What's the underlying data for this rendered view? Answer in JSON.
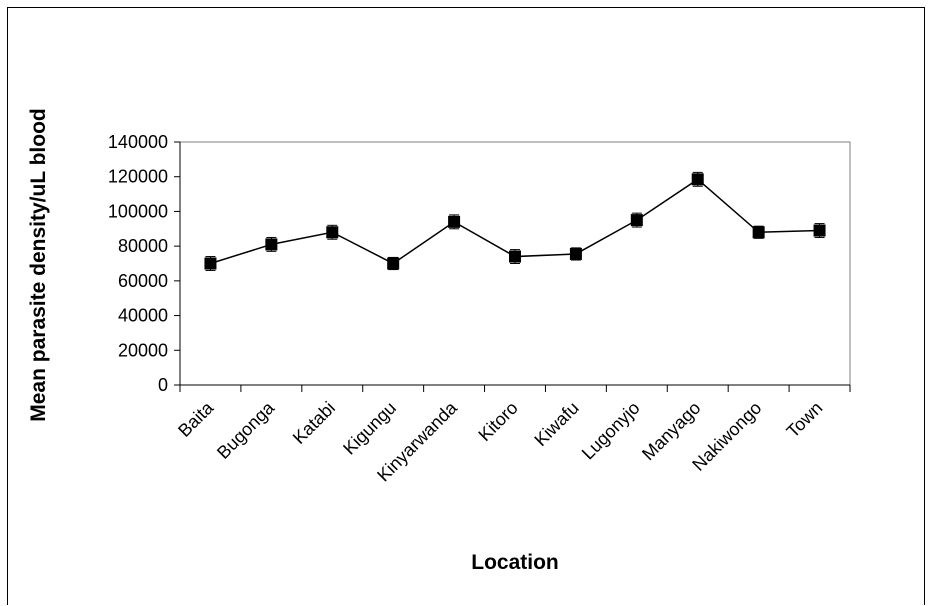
{
  "chart_data": {
    "type": "line",
    "title": "",
    "xlabel": "Location",
    "ylabel": "Mean parasite density/uL blood",
    "categories": [
      "Baita",
      "Bugonga",
      "Katabi",
      "Kigungu",
      "Kinyarwanda",
      "Kitoro",
      "Kiwafu",
      "Lugonyjo",
      "Manyago",
      "Nakiwongo",
      "Town"
    ],
    "series": [
      {
        "values": [
          70000,
          81000,
          88000,
          70000,
          94000,
          74000,
          75500,
          95000,
          118500,
          88000,
          89000
        ],
        "error": [
          4000,
          4000,
          4000,
          3500,
          4000,
          4000,
          3500,
          4000,
          4000,
          3500,
          4000
        ],
        "color": "#000000",
        "marker": "square"
      }
    ],
    "ylim": [
      0,
      140000
    ],
    "yticks": [
      "0",
      "20000",
      "40000",
      "60000",
      "80000",
      "100000",
      "120000",
      "140000"
    ],
    "grid": false,
    "legend": "none"
  }
}
